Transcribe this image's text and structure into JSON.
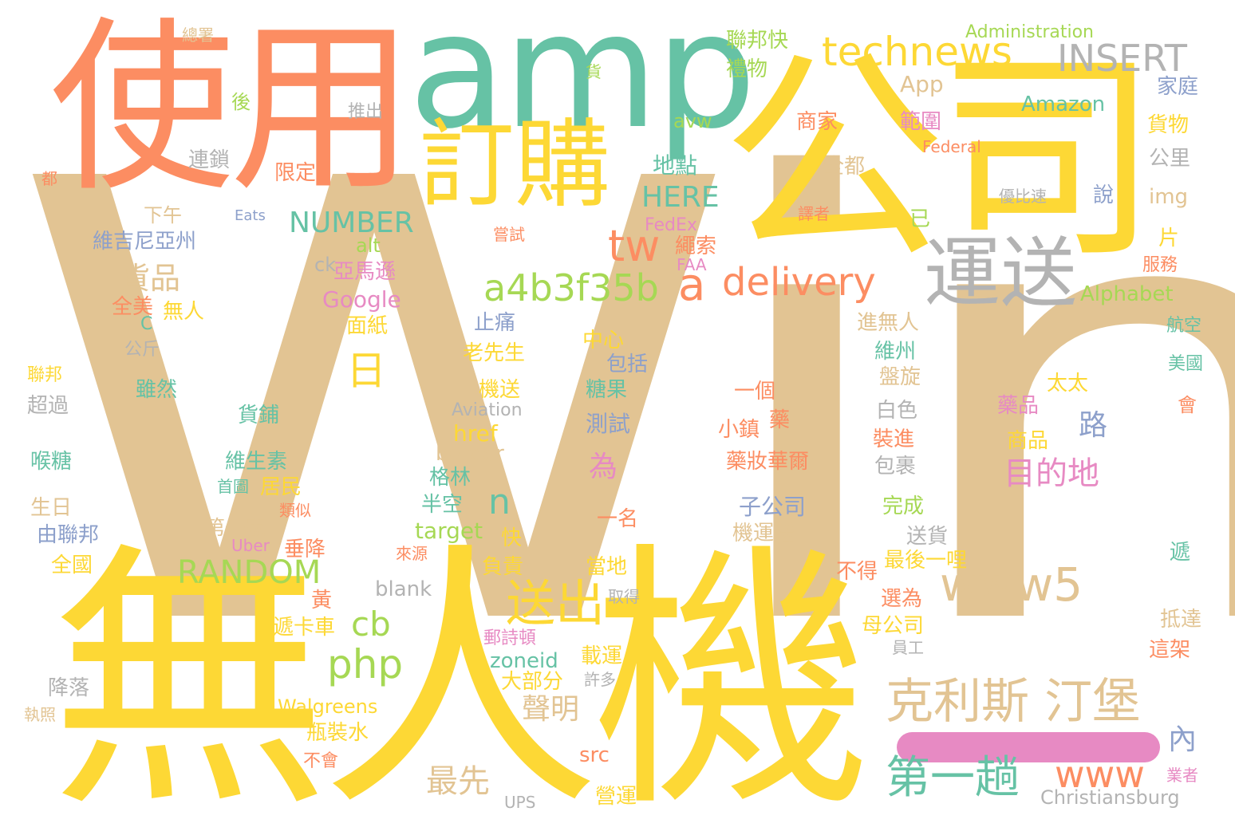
{
  "colors": {
    "tan": "#e2c493",
    "yellow": "#fdd835",
    "orange": "#fc8d62",
    "teal": "#66c2a5",
    "gray": "#b3b3b3",
    "green": "#a6d854",
    "pink": "#e78ac3",
    "blue": "#8da0cb"
  },
  "words": [
    {
      "text": "Wing",
      "color": "tan"
    },
    {
      "text": "無人機",
      "color": "yellow"
    },
    {
      "text": "使用",
      "color": "orange"
    },
    {
      "text": "公司",
      "color": "yellow"
    },
    {
      "text": "amp",
      "color": "teal"
    },
    {
      "text": "訂購",
      "color": "yellow"
    },
    {
      "text": "運送",
      "color": "gray"
    },
    {
      "text": "technews",
      "color": "yellow"
    },
    {
      "text": "INSERT",
      "color": "gray"
    },
    {
      "text": "克利斯 汀堡",
      "color": "tan"
    },
    {
      "text": "www5",
      "color": "tan"
    },
    {
      "text": "a4b3f35b",
      "color": "green"
    },
    {
      "text": "a",
      "color": "orange"
    },
    {
      "text": "delivery",
      "color": "orange"
    },
    {
      "text": "tw",
      "color": "orange"
    },
    {
      "text": "日",
      "color": "yellow"
    },
    {
      "text": "送出",
      "color": "yellow"
    },
    {
      "text": "第一趟",
      "color": "teal"
    },
    {
      "text": "www",
      "color": "orange"
    },
    {
      "text": "php",
      "color": "green"
    },
    {
      "text": "RANDOM",
      "color": "green"
    },
    {
      "text": "NUMBER",
      "color": "teal"
    },
    {
      "text": "HERE",
      "color": "teal"
    },
    {
      "text": "cb",
      "color": "green"
    },
    {
      "text": "n",
      "color": "teal"
    },
    {
      "text": "目的地",
      "color": "pink"
    },
    {
      "text": "路",
      "color": "blue"
    },
    {
      "text": "聲明",
      "color": "tan"
    },
    {
      "text": "最先",
      "color": "tan"
    },
    {
      "text": "內",
      "color": "blue"
    },
    {
      "text": "為",
      "color": "pink"
    },
    {
      "text": "貨品",
      "color": "tan"
    },
    {
      "text": "Administration",
      "color": "green"
    },
    {
      "text": "App",
      "color": "tan"
    },
    {
      "text": "Amazon",
      "color": "teal"
    },
    {
      "text": "Federal",
      "color": "orange"
    },
    {
      "text": "FedEx",
      "color": "pink"
    },
    {
      "text": "FAA",
      "color": "pink"
    },
    {
      "text": "Alphabet",
      "color": "green"
    },
    {
      "text": "Google",
      "color": "pink"
    },
    {
      "text": "Aviation",
      "color": "gray"
    },
    {
      "text": "Walgreens",
      "color": "yellow"
    },
    {
      "text": "Uber",
      "color": "pink"
    },
    {
      "text": "Eats",
      "color": "blue"
    },
    {
      "text": "UPS",
      "color": "gray"
    },
    {
      "text": "Christiansburg",
      "color": "gray"
    },
    {
      "text": "href",
      "color": "yellow"
    },
    {
      "text": "border",
      "color": "tan"
    },
    {
      "text": "target",
      "color": "green"
    },
    {
      "text": "blank",
      "color": "gray"
    },
    {
      "text": "src",
      "color": "orange"
    },
    {
      "text": "zoneid",
      "color": "teal"
    },
    {
      "text": "alt",
      "color": "green"
    },
    {
      "text": "ck",
      "color": "gray"
    },
    {
      "text": "C",
      "color": "teal"
    },
    {
      "text": "avw",
      "color": "green"
    },
    {
      "text": "img",
      "color": "tan"
    },
    {
      "text": "總署",
      "color": "tan"
    },
    {
      "text": "後",
      "color": "green"
    },
    {
      "text": "推出",
      "color": "gray"
    },
    {
      "text": "連鎖",
      "color": "gray"
    },
    {
      "text": "都",
      "color": "orange"
    },
    {
      "text": "限定",
      "color": "orange"
    },
    {
      "text": "下午",
      "color": "tan"
    },
    {
      "text": "維吉尼亞州",
      "color": "blue"
    },
    {
      "text": "全美",
      "color": "orange"
    },
    {
      "text": "無人",
      "color": "yellow"
    },
    {
      "text": "公斤",
      "color": "gray"
    },
    {
      "text": "聯邦",
      "color": "yellow"
    },
    {
      "text": "雖然",
      "color": "teal"
    },
    {
      "text": "超過",
      "color": "gray"
    },
    {
      "text": "貨鋪",
      "color": "teal"
    },
    {
      "text": "喉糖",
      "color": "teal"
    },
    {
      "text": "維生素",
      "color": "teal"
    },
    {
      "text": "首圖",
      "color": "teal"
    },
    {
      "text": "居民",
      "color": "yellow"
    },
    {
      "text": "生日",
      "color": "tan"
    },
    {
      "text": "類似",
      "color": "orange"
    },
    {
      "text": "由聯邦",
      "color": "blue"
    },
    {
      "text": "第一家",
      "color": "tan"
    },
    {
      "text": "垂降",
      "color": "orange"
    },
    {
      "text": "全國",
      "color": "yellow"
    },
    {
      "text": "黃",
      "color": "orange"
    },
    {
      "text": "遞卡車",
      "color": "yellow"
    },
    {
      "text": "降落",
      "color": "gray"
    },
    {
      "text": "執照",
      "color": "tan"
    },
    {
      "text": "瓶裝水",
      "color": "yellow"
    },
    {
      "text": "不會",
      "color": "orange"
    },
    {
      "text": "聯邦快",
      "color": "green"
    },
    {
      "text": "禮物",
      "color": "green"
    },
    {
      "text": "貨",
      "color": "green"
    },
    {
      "text": "商家",
      "color": "orange"
    },
    {
      "text": "地點",
      "color": "teal"
    },
    {
      "text": "全都",
      "color": "tan"
    },
    {
      "text": "譯者",
      "color": "orange"
    },
    {
      "text": "嘗試",
      "color": "orange"
    },
    {
      "text": "繩索",
      "color": "orange"
    },
    {
      "text": "亞馬遜",
      "color": "pink"
    },
    {
      "text": "面紙",
      "color": "yellow"
    },
    {
      "text": "止痛",
      "color": "blue"
    },
    {
      "text": "中心",
      "color": "yellow"
    },
    {
      "text": "老先生",
      "color": "yellow"
    },
    {
      "text": "包括",
      "color": "blue"
    },
    {
      "text": "機送",
      "color": "yellow"
    },
    {
      "text": "糖果",
      "color": "teal"
    },
    {
      "text": "一個",
      "color": "orange"
    },
    {
      "text": "格林",
      "color": "teal"
    },
    {
      "text": "測試",
      "color": "blue"
    },
    {
      "text": "小鎮",
      "color": "orange"
    },
    {
      "text": "藥",
      "color": "orange"
    },
    {
      "text": "藥妝華爾",
      "color": "orange"
    },
    {
      "text": "半空",
      "color": "teal"
    },
    {
      "text": "子公司",
      "color": "blue"
    },
    {
      "text": "一名",
      "color": "orange"
    },
    {
      "text": "機運送",
      "color": "tan"
    },
    {
      "text": "快",
      "color": "yellow"
    },
    {
      "text": "來源",
      "color": "orange"
    },
    {
      "text": "負責",
      "color": "yellow"
    },
    {
      "text": "當地",
      "color": "yellow"
    },
    {
      "text": "取得",
      "color": "gray"
    },
    {
      "text": "郵詩頓",
      "color": "pink"
    },
    {
      "text": "載運",
      "color": "yellow"
    },
    {
      "text": "大部分",
      "color": "yellow"
    },
    {
      "text": "許多",
      "color": "gray"
    },
    {
      "text": "營運",
      "color": "yellow"
    },
    {
      "text": "範圍",
      "color": "pink"
    },
    {
      "text": "優比速",
      "color": "gray"
    },
    {
      "text": "已",
      "color": "green"
    },
    {
      "text": "說",
      "color": "blue"
    },
    {
      "text": "進無人",
      "color": "tan"
    },
    {
      "text": "維州",
      "color": "teal"
    },
    {
      "text": "盤旋",
      "color": "tan"
    },
    {
      "text": "白色",
      "color": "gray"
    },
    {
      "text": "裝進",
      "color": "orange"
    },
    {
      "text": "包裹",
      "color": "gray"
    },
    {
      "text": "完成",
      "color": "green"
    },
    {
      "text": "送貨",
      "color": "gray"
    },
    {
      "text": "最後一哩",
      "color": "yellow"
    },
    {
      "text": "不得",
      "color": "orange"
    },
    {
      "text": "選為",
      "color": "orange"
    },
    {
      "text": "母公司",
      "color": "yellow"
    },
    {
      "text": "員工",
      "color": "gray"
    },
    {
      "text": "藥品",
      "color": "pink"
    },
    {
      "text": "太太",
      "color": "yellow"
    },
    {
      "text": "商品",
      "color": "yellow"
    },
    {
      "text": "家庭",
      "color": "blue"
    },
    {
      "text": "貨物",
      "color": "yellow"
    },
    {
      "text": "公里",
      "color": "gray"
    },
    {
      "text": "片",
      "color": "yellow"
    },
    {
      "text": "服務",
      "color": "orange"
    },
    {
      "text": "航空",
      "color": "teal"
    },
    {
      "text": "美國",
      "color": "teal"
    },
    {
      "text": "會",
      "color": "orange"
    },
    {
      "text": "遞",
      "color": "teal"
    },
    {
      "text": "抵達",
      "color": "tan"
    },
    {
      "text": "這架",
      "color": "orange"
    },
    {
      "text": "業者",
      "color": "pink"
    }
  ]
}
